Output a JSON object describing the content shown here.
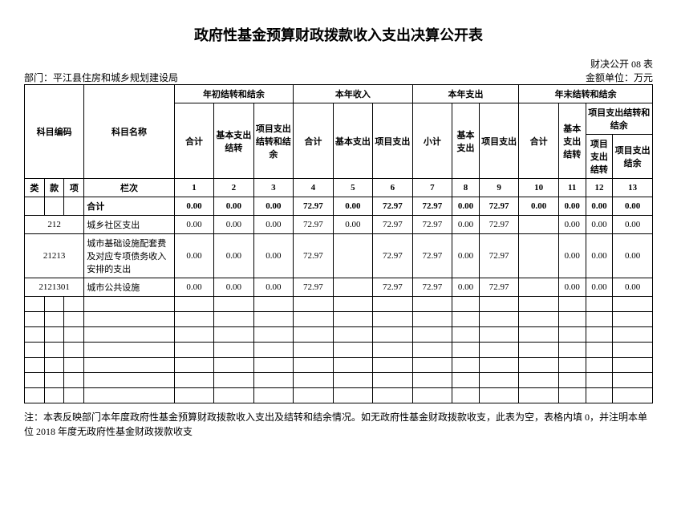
{
  "title": "政府性基金预算财政拨款收入支出决算公开表",
  "form_no": "财决公开 08 表",
  "dept_label": "部门：",
  "dept_name": "平江县住房和城乡规划建设局",
  "unit": "金额单位：万元",
  "header": {
    "subject_code": "科目编码",
    "subject_name": "科目名称",
    "begin_bal": "年初结转和结余",
    "year_in": "本年收入",
    "year_out": "本年支出",
    "end_bal": "年末结转和结余",
    "total": "合计",
    "basic_carry": "基本支出结转",
    "proj_carry_bal": "项目支出结转和结余",
    "basic_out": "基本支出",
    "proj_out": "项目支出",
    "subtotal": "小计",
    "proj_carry": "项目支出结转",
    "proj_bal": "项目支出结余",
    "class": "类",
    "item": "款",
    "sub": "项",
    "col_seq": "栏次"
  },
  "colseq": [
    "1",
    "2",
    "3",
    "4",
    "5",
    "6",
    "7",
    "8",
    "9",
    "10",
    "11",
    "12",
    "13"
  ],
  "rows": [
    {
      "code1": "",
      "code2": "",
      "code3": "",
      "name": "合计",
      "bold": true,
      "c": [
        "0.00",
        "0.00",
        "0.00",
        "72.97",
        "0.00",
        "72.97",
        "72.97",
        "0.00",
        "72.97",
        "0.00",
        "0.00",
        "0.00",
        "0.00"
      ]
    },
    {
      "code_span": "212",
      "name": "城乡社区支出",
      "c": [
        "0.00",
        "0.00",
        "0.00",
        "72.97",
        "0.00",
        "72.97",
        "72.97",
        "0.00",
        "72.97",
        "",
        "0.00",
        "0.00",
        "0.00"
      ]
    },
    {
      "code_span": "21213",
      "name": "城市基础设施配套费及对应专项债务收入安排的支出",
      "c": [
        "0.00",
        "0.00",
        "0.00",
        "72.97",
        "",
        "72.97",
        "72.97",
        "0.00",
        "72.97",
        "",
        "0.00",
        "0.00",
        "0.00"
      ]
    },
    {
      "code_span": "2121301",
      "name": "城市公共设施",
      "c": [
        "0.00",
        "0.00",
        "0.00",
        "72.97",
        "",
        "72.97",
        "72.97",
        "0.00",
        "72.97",
        "",
        "0.00",
        "0.00",
        "0.00"
      ]
    }
  ],
  "empty_rows": 7,
  "note": "注：本表反映部门本年度政府性基金预算财政拨款收入支出及结转和结余情况。如无政府性基金财政拨款收支，此表为空，表格内填 0，并注明本单位 2018 年度无政府性基金财政拨款收支"
}
